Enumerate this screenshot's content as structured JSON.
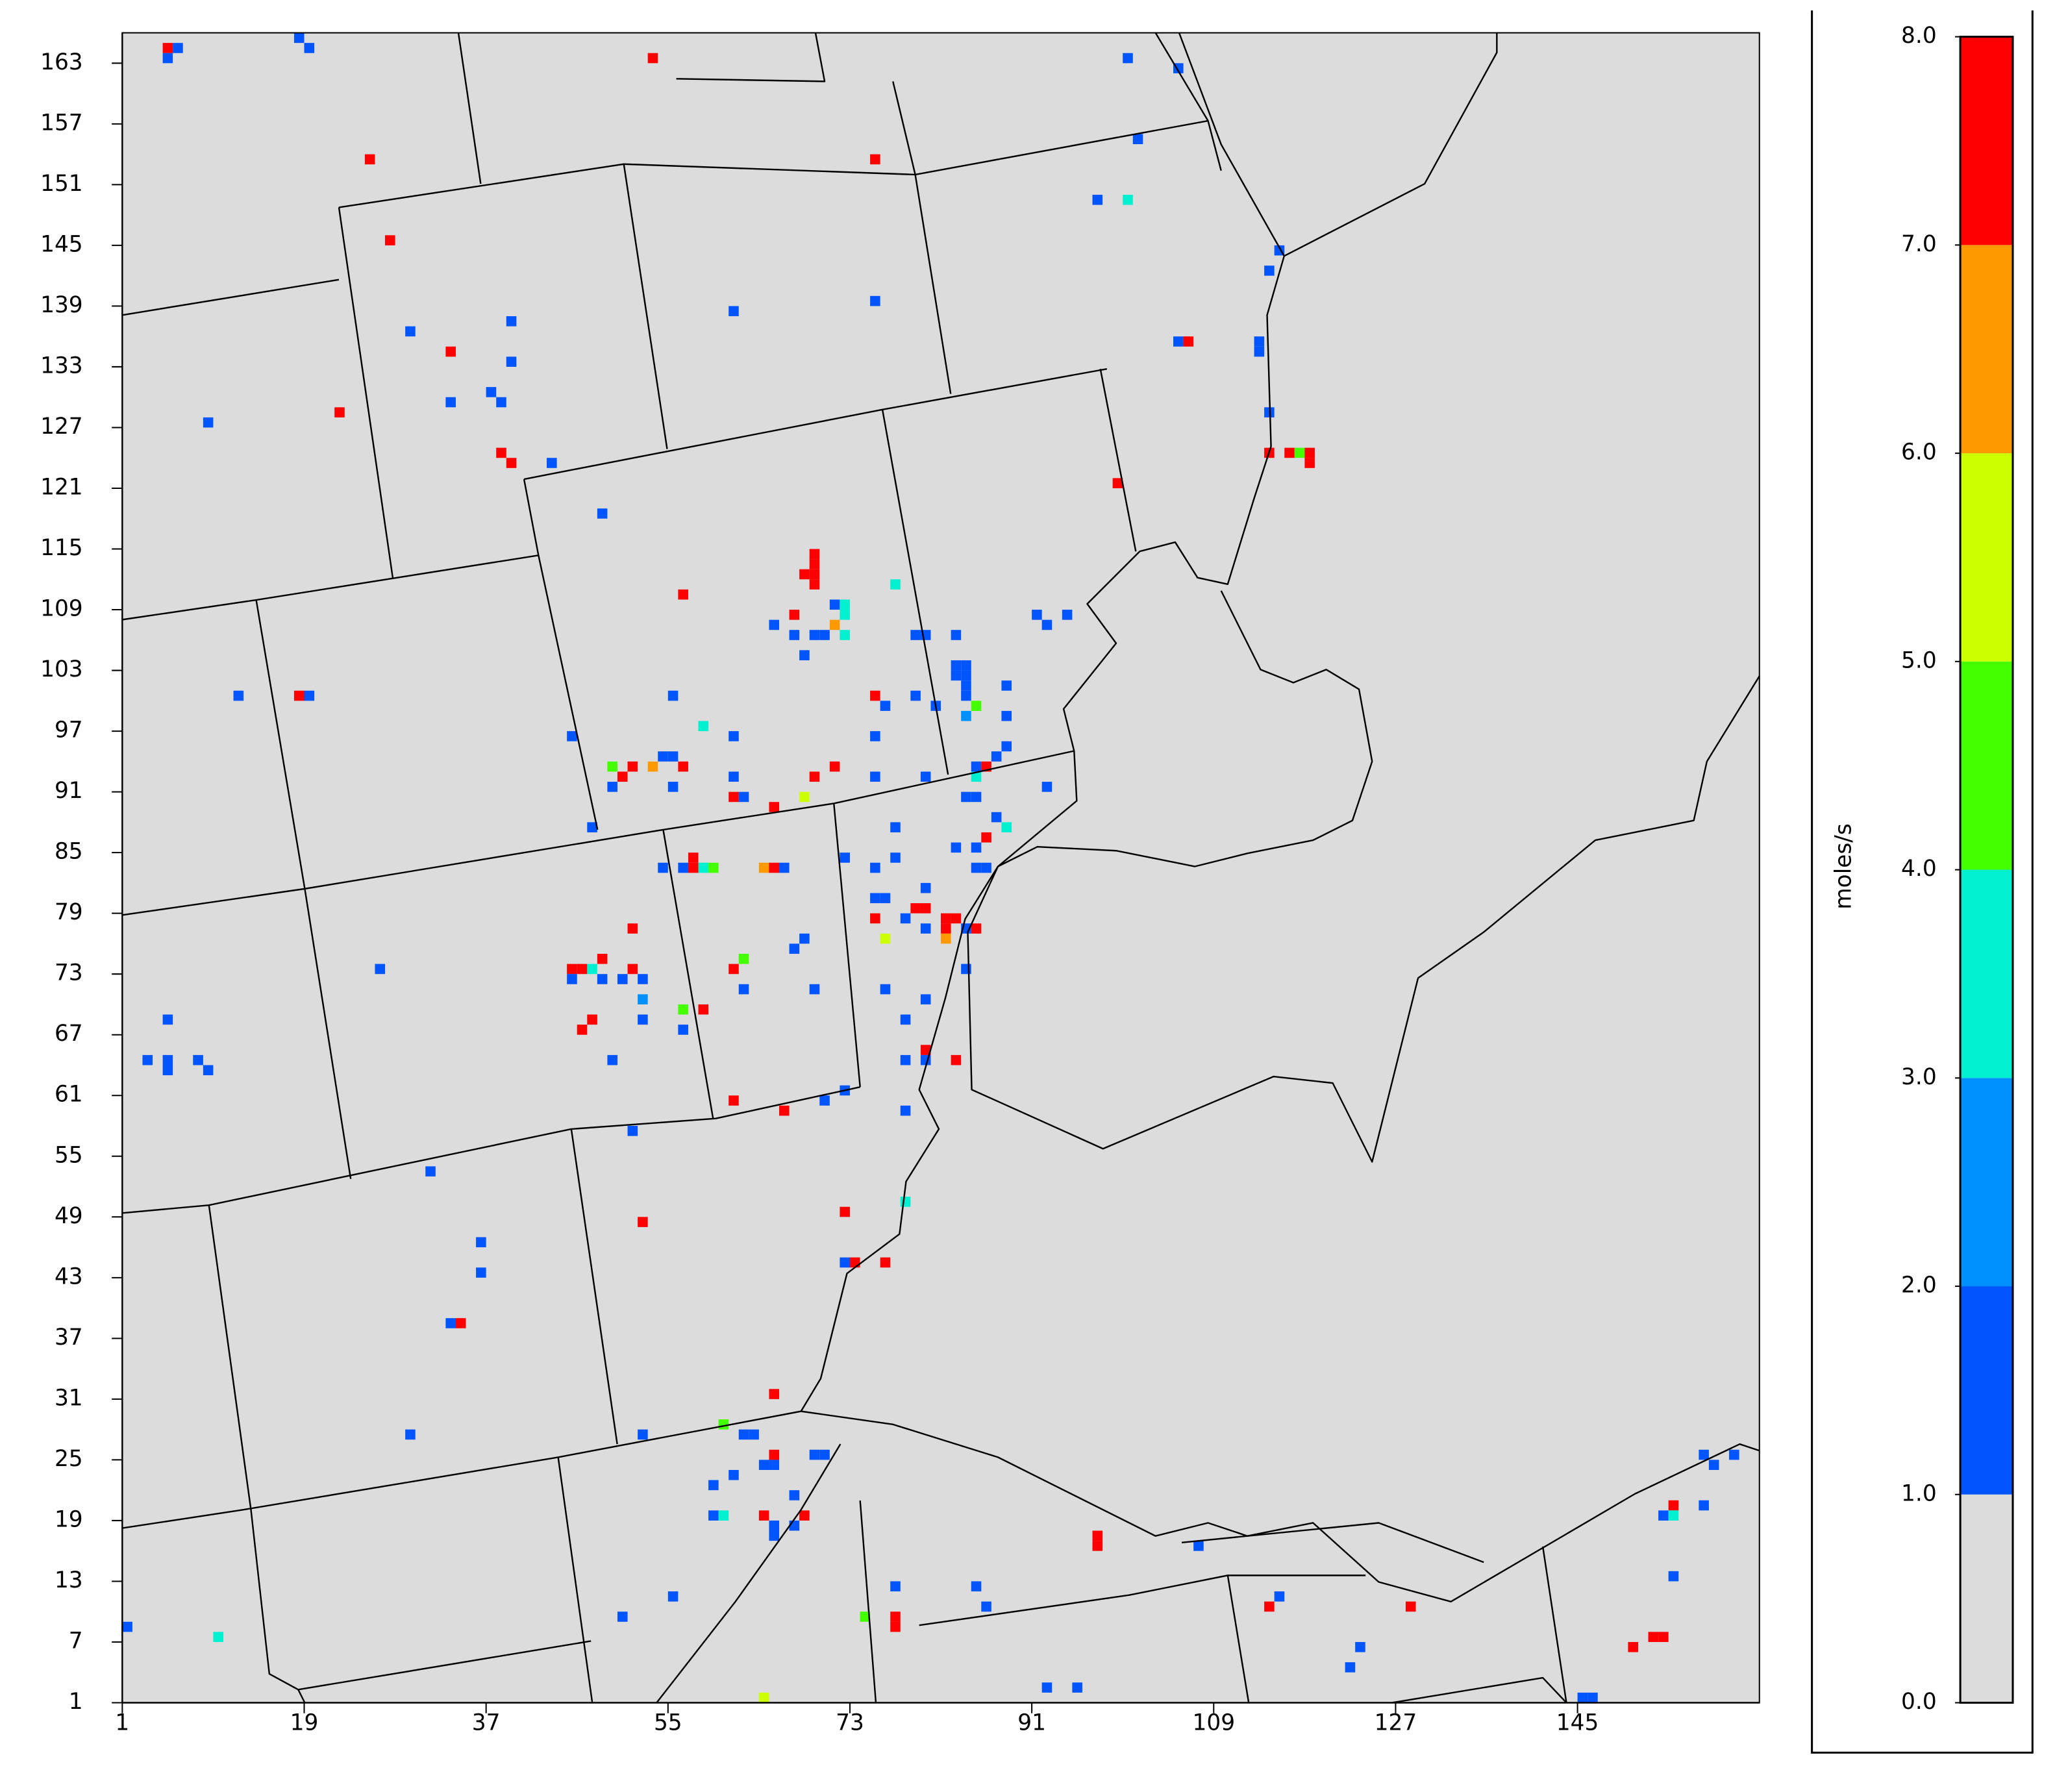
{
  "chart_data": {
    "type": "tile",
    "xlim": [
      1,
      163
    ],
    "ylim": [
      1,
      166
    ],
    "xticks": [
      1,
      19,
      37,
      55,
      73,
      91,
      109,
      127,
      145
    ],
    "yticks": [
      1,
      7,
      13,
      19,
      25,
      31,
      37,
      43,
      49,
      55,
      61,
      67,
      73,
      79,
      85,
      91,
      97,
      103,
      109,
      115,
      121,
      127,
      133,
      139,
      145,
      151,
      157,
      163
    ],
    "background": "#dcdcdc",
    "colorbar": {
      "label": "moles/s",
      "clim": [
        0,
        8
      ],
      "colors": [
        "#dcdcdc",
        "#0055ff",
        "#0090ff",
        "#00f0d0",
        "#44ff00",
        "#ccff00",
        "#ff9900",
        "#ff0000"
      ],
      "ticks": [
        {
          "value": 0,
          "label": "0.0"
        },
        {
          "value": 1,
          "label": "1.0"
        },
        {
          "value": 2,
          "label": "2.0"
        },
        {
          "value": 3,
          "label": "3.0"
        },
        {
          "value": 4,
          "label": "4.0"
        },
        {
          "value": 5,
          "label": "5.0"
        },
        {
          "value": 6,
          "label": "6.0"
        },
        {
          "value": 7,
          "label": "7.0"
        },
        {
          "value": 8,
          "label": "8.0"
        }
      ]
    },
    "x": [
      5,
      6,
      5,
      18,
      19,
      53,
      100,
      105,
      101,
      25,
      75,
      97,
      100,
      27,
      115,
      114,
      61,
      75,
      39,
      29,
      33,
      39,
      37,
      38,
      33,
      22,
      9,
      105,
      106,
      113,
      113,
      114,
      38,
      39,
      43,
      114,
      116,
      117,
      118,
      118,
      99,
      48,
      69,
      69,
      69,
      69,
      68,
      56,
      77,
      67,
      65,
      71,
      72,
      72,
      71,
      67,
      69,
      70,
      72,
      68,
      91,
      94,
      92,
      79,
      80,
      83,
      83,
      84,
      83,
      84,
      84,
      84,
      88,
      12,
      18,
      19,
      55,
      75,
      79,
      76,
      81,
      85,
      84,
      88,
      58,
      61,
      75,
      45,
      88,
      87,
      85,
      86,
      85,
      49,
      51,
      53,
      56,
      50,
      49,
      54,
      55,
      55,
      61,
      61,
      62,
      65,
      68,
      69,
      71,
      75,
      80,
      84,
      85,
      92,
      47,
      77,
      87,
      88,
      86,
      83,
      85,
      72,
      77,
      75,
      80,
      54,
      56,
      57,
      57,
      58,
      59,
      64,
      65,
      66,
      85,
      86,
      75,
      76,
      79,
      80,
      82,
      83,
      82,
      80,
      85,
      76,
      82,
      75,
      78,
      84,
      68,
      67,
      51,
      62,
      61,
      62,
      69,
      76,
      80,
      84,
      45,
      46,
      45,
      47,
      48,
      48,
      50,
      51,
      52,
      52,
      26,
      46,
      47,
      52,
      56,
      58,
      56,
      78,
      5,
      3,
      5,
      5,
      8,
      9,
      49,
      80,
      78,
      80,
      83,
      72,
      61,
      70,
      66,
      78,
      51,
      31,
      78,
      72,
      52,
      36,
      36,
      72,
      73,
      76,
      33,
      34,
      65,
      29,
      52,
      60,
      62,
      63,
      65,
      64,
      65,
      69,
      70,
      61,
      59,
      67,
      59,
      60,
      64,
      68,
      67,
      65,
      65,
      97,
      97,
      107,
      55,
      50,
      74,
      77,
      77,
      77,
      85,
      86,
      114,
      115,
      128,
      1,
      10,
      123,
      122,
      150,
      152,
      153,
      92,
      95,
      64,
      145,
      146,
      154,
      153,
      154,
      157,
      157,
      158,
      160,
      154
    ],
    "y": [
      164,
      164,
      163,
      165,
      164,
      163,
      163,
      162,
      155,
      153,
      153,
      149,
      149,
      145,
      144,
      142,
      138,
      139,
      137,
      136,
      134,
      133,
      130,
      129,
      129,
      128,
      127,
      135,
      135,
      135,
      134,
      128,
      124,
      123,
      123,
      124,
      124,
      124,
      124,
      123,
      121,
      118,
      114,
      113,
      112,
      111,
      112,
      110,
      111,
      108,
      107,
      109,
      109,
      108,
      107,
      106,
      106,
      106,
      106,
      104,
      108,
      108,
      107,
      106,
      106,
      106,
      103,
      103,
      102,
      102,
      101,
      100,
      101,
      100,
      100,
      100,
      100,
      100,
      100,
      99,
      99,
      99,
      98,
      98,
      97,
      96,
      96,
      96,
      95,
      94,
      93,
      93,
      92,
      93,
      93,
      93,
      93,
      92,
      91,
      94,
      94,
      91,
      92,
      90,
      90,
      89,
      90,
      92,
      93,
      92,
      92,
      90,
      90,
      91,
      87,
      87,
      88,
      87,
      86,
      85,
      85,
      84,
      84,
      83,
      81,
      83,
      83,
      84,
      83,
      83,
      83,
      83,
      83,
      83,
      83,
      83,
      80,
      80,
      79,
      79,
      78,
      78,
      77,
      77,
      77,
      76,
      76,
      78,
      78,
      77,
      76,
      75,
      77,
      74,
      73,
      71,
      71,
      71,
      70,
      73,
      73,
      73,
      72,
      73,
      74,
      72,
      72,
      73,
      72,
      70,
      73,
      67,
      68,
      68,
      69,
      69,
      67,
      68,
      68,
      64,
      64,
      63,
      64,
      63,
      64,
      65,
      64,
      64,
      64,
      61,
      60,
      60,
      59,
      59,
      57,
      53,
      50,
      49,
      48,
      46,
      43,
      44,
      44,
      44,
      38,
      38,
      31,
      27,
      27,
      28,
      27,
      27,
      25,
      24,
      24,
      25,
      25,
      23,
      22,
      21,
      19,
      19,
      19,
      19,
      18,
      18,
      17,
      17,
      16,
      16,
      11,
      9,
      9,
      9,
      8,
      12,
      12,
      10,
      10,
      11,
      10,
      8,
      7,
      6,
      4,
      6,
      7,
      7,
      2,
      2,
      1,
      1,
      1,
      20,
      19,
      19,
      20,
      25,
      24,
      25,
      13
    ],
    "values": [
      7.5,
      1.5,
      1.5,
      1.5,
      1.5,
      7.5,
      1.5,
      1.5,
      1.5,
      7.5,
      7.5,
      1.5,
      3.5,
      7.5,
      1.5,
      1.5,
      1.5,
      1.5,
      1.5,
      1.5,
      7.5,
      1.5,
      1.5,
      1.5,
      1.5,
      7.5,
      1.5,
      1.5,
      7.5,
      1.5,
      1.5,
      1.5,
      7.5,
      7.5,
      1.5,
      7.5,
      7.5,
      4.5,
      7.5,
      7.5,
      7.5,
      1.5,
      7.5,
      7.5,
      7.5,
      7.5,
      7.5,
      7.5,
      3.5,
      7.5,
      1.5,
      1.5,
      3.5,
      3.5,
      6.5,
      1.5,
      1.5,
      1.5,
      3.5,
      1.5,
      1.5,
      1.5,
      1.5,
      1.5,
      1.5,
      1.5,
      1.5,
      1.5,
      1.5,
      1.5,
      1.5,
      1.5,
      1.5,
      1.5,
      7.5,
      1.5,
      1.5,
      7.5,
      1.5,
      1.5,
      1.5,
      4.5,
      2.5,
      1.5,
      3.5,
      1.5,
      1.5,
      1.5,
      1.5,
      1.5,
      1.5,
      7.5,
      3.5,
      4.5,
      7.5,
      6.5,
      7.5,
      7.5,
      1.5,
      1.5,
      1.5,
      1.5,
      1.5,
      7.5,
      1.5,
      7.5,
      5.5,
      7.5,
      7.5,
      1.5,
      1.5,
      1.5,
      1.5,
      1.5,
      1.5,
      1.5,
      1.5,
      3.5,
      7.5,
      1.5,
      1.5,
      1.5,
      1.5,
      1.5,
      1.5,
      1.5,
      1.5,
      7.5,
      7.5,
      3.5,
      4.5,
      6.5,
      7.5,
      1.5,
      1.5,
      1.5,
      1.5,
      1.5,
      7.5,
      7.5,
      7.5,
      7.5,
      7.5,
      1.5,
      7.5,
      5.5,
      6.5,
      7.5,
      1.5,
      1.5,
      1.5,
      1.5,
      7.5,
      4.5,
      7.5,
      1.5,
      1.5,
      1.5,
      1.5,
      1.5,
      7.5,
      7.5,
      1.5,
      3.5,
      7.5,
      1.5,
      1.5,
      7.5,
      1.5,
      2.5,
      1.5,
      7.5,
      7.5,
      1.5,
      4.5,
      7.5,
      1.5,
      1.5,
      1.5,
      1.5,
      1.5,
      1.5,
      1.5,
      1.5,
      1.5,
      7.5,
      1.5,
      1.5,
      7.5,
      1.5,
      7.5,
      1.5,
      7.5,
      1.5,
      1.5,
      1.5,
      3.5,
      7.5,
      7.5,
      1.5,
      1.5,
      1.5,
      7.5,
      7.5,
      1.5,
      7.5,
      7.5,
      1.5,
      1.5,
      4.5,
      1.5,
      1.5,
      7.5,
      1.5,
      1.5,
      1.5,
      1.5,
      1.5,
      1.5,
      1.5,
      1.5,
      3.5,
      7.5,
      7.5,
      1.5,
      1.5,
      1.5,
      7.5,
      7.5,
      1.5,
      1.5,
      1.5,
      4.5,
      7.5,
      7.5,
      1.5,
      1.5,
      1.5,
      7.5,
      1.5,
      7.5,
      1.5,
      3.5,
      1.5,
      1.5,
      7.5,
      7.5,
      7.5,
      1.5,
      1.5,
      5.5,
      1.5,
      1.5,
      7.5,
      1.5,
      3.5,
      1.5,
      1.5,
      1.5,
      1.5,
      1.5
    ]
  }
}
